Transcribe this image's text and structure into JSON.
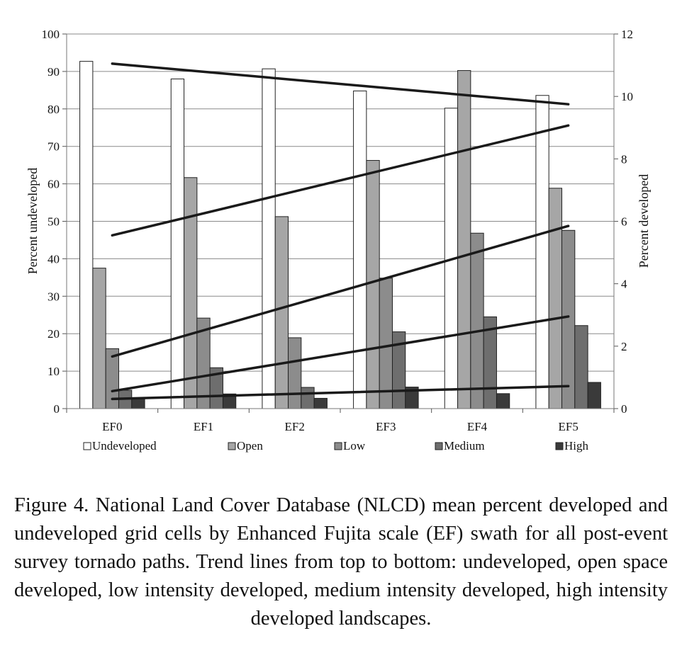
{
  "caption": "Figure 4.  National Land Cover Database (NLCD) mean percent developed and undeveloped grid cells by Enhanced Fujita scale (EF) swath for all post-event survey tornado paths. Trend lines from top to bottom: undeveloped, open space developed, low intensity developed, medium intensity developed, high intensity developed landscapes.",
  "chart_data": {
    "type": "bar",
    "categories": [
      "EF0",
      "EF1",
      "EF2",
      "EF3",
      "EF4",
      "EF5"
    ],
    "ylabel": "Percent  undeveloped",
    "y2label": "Percent  developed",
    "ylim": [
      0,
      100
    ],
    "y2lim": [
      0,
      12
    ],
    "yticks": [
      "0",
      "10",
      "20",
      "30",
      "40",
      "50",
      "60",
      "70",
      "80",
      "90",
      "100"
    ],
    "y2ticks": [
      "0",
      "2",
      "4",
      "6",
      "8",
      "10",
      "12"
    ],
    "grid": true,
    "legend_position": "bottom",
    "series": [
      {
        "name": "Undeveloped",
        "axis": "left",
        "color": "#ffffff",
        "values": [
          92.7,
          88.0,
          90.7,
          84.8,
          80.2,
          83.6
        ]
      },
      {
        "name": "Open",
        "axis": "right",
        "color": "#a6a6a6",
        "values": [
          4.5,
          7.4,
          6.15,
          7.95,
          10.83,
          7.06
        ]
      },
      {
        "name": "Low",
        "axis": "right",
        "color": "#8c8c8c",
        "values": [
          1.92,
          2.9,
          2.27,
          4.18,
          5.62,
          5.71
        ]
      },
      {
        "name": "Medium",
        "axis": "right",
        "color": "#6e6e6e",
        "values": [
          0.59,
          1.31,
          0.68,
          2.46,
          2.94,
          2.66
        ]
      },
      {
        "name": "High",
        "axis": "right",
        "color": "#3a3a3a",
        "values": [
          0.34,
          0.47,
          0.33,
          0.69,
          0.48,
          0.84
        ]
      }
    ],
    "trend_lines": [
      {
        "axis": "right",
        "start": 11.05,
        "end": 9.75
      },
      {
        "axis": "right",
        "start": 5.55,
        "end": 9.07
      },
      {
        "axis": "right",
        "start": 1.67,
        "end": 5.85
      },
      {
        "axis": "right",
        "start": 0.56,
        "end": 2.95
      },
      {
        "axis": "right",
        "start": 0.31,
        "end": 0.72
      }
    ]
  }
}
